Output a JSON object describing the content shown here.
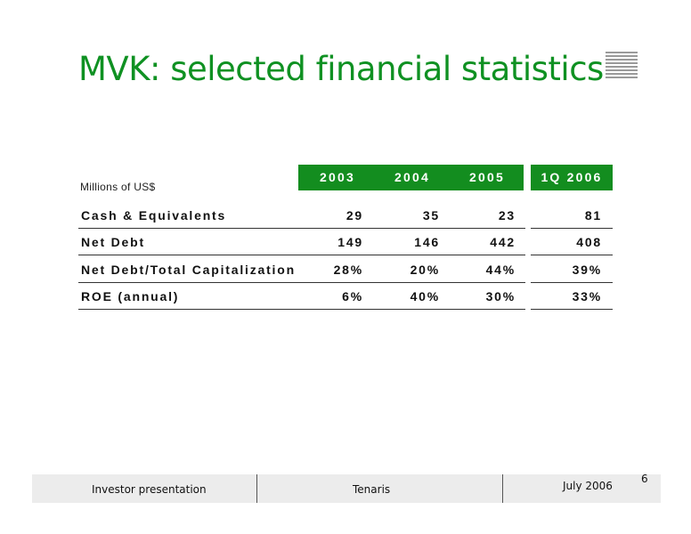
{
  "title": "MVK: selected financial statistics",
  "logo_icon": "stacked-lines-logo-icon",
  "table": {
    "units_label": "Millions of US$",
    "columns": [
      "2003",
      "2004",
      "2005",
      "1Q 2006"
    ],
    "rows": [
      {
        "label": "Cash & Equivalents",
        "values": [
          "29",
          "35",
          "23",
          "81"
        ]
      },
      {
        "label": "Net Debt",
        "values": [
          "149",
          "146",
          "442",
          "408"
        ]
      },
      {
        "label": "Net Debt/Total Capitalization",
        "values": [
          "28%",
          "20%",
          "44%",
          "39%"
        ]
      },
      {
        "label": "ROE (annual)",
        "values": [
          "6%",
          "40%",
          "30%",
          "33%"
        ]
      }
    ]
  },
  "footer": {
    "left": "Investor presentation",
    "center": "Tenaris",
    "right": "July 2006",
    "page_number": "6"
  },
  "colors": {
    "accent": "#138d1f",
    "title": "#0f9122",
    "footer_bg": "#ececec"
  }
}
